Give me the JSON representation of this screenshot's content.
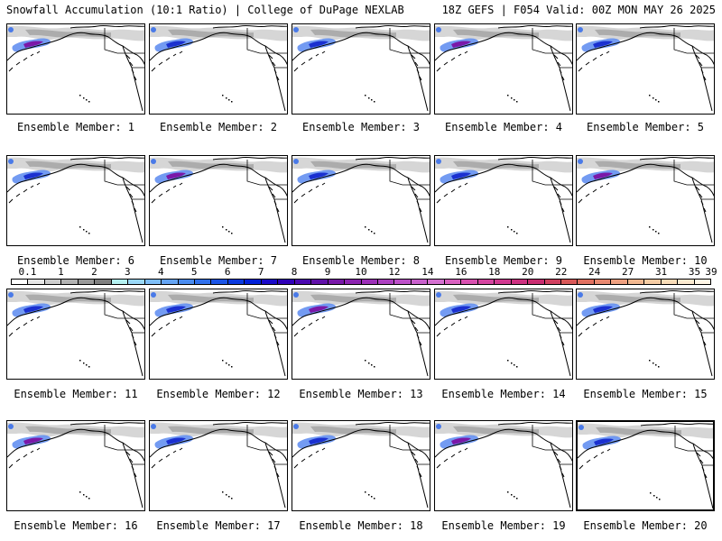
{
  "header": {
    "left_title": "Snowfall Accumulation (10:1 Ratio) | College of DuPage NEXLAB",
    "right_title": "18Z GEFS | F054 Valid: 00Z MON MAY 26 2025"
  },
  "members": [
    {
      "label": "Ensemble Member: 1"
    },
    {
      "label": "Ensemble Member: 2"
    },
    {
      "label": "Ensemble Member: 3"
    },
    {
      "label": "Ensemble Member: 4"
    },
    {
      "label": "Ensemble Member: 5"
    },
    {
      "label": "Ensemble Member: 6"
    },
    {
      "label": "Ensemble Member: 7"
    },
    {
      "label": "Ensemble Member: 8"
    },
    {
      "label": "Ensemble Member: 9"
    },
    {
      "label": "Ensemble Member: 10"
    },
    {
      "label": "Ensemble Member: 11"
    },
    {
      "label": "Ensemble Member: 12"
    },
    {
      "label": "Ensemble Member: 13"
    },
    {
      "label": "Ensemble Member: 14"
    },
    {
      "label": "Ensemble Member: 15"
    },
    {
      "label": "Ensemble Member: 16"
    },
    {
      "label": "Ensemble Member: 17"
    },
    {
      "label": "Ensemble Member: 18"
    },
    {
      "label": "Ensemble Member: 19"
    },
    {
      "label": "Ensemble Member: 20"
    }
  ],
  "colorbar": {
    "labels": [
      "0.1",
      "1",
      "2",
      "3",
      "4",
      "5",
      "6",
      "7",
      "8",
      "9",
      "10",
      "12",
      "14",
      "16",
      "18",
      "20",
      "22",
      "24",
      "27",
      "31",
      "35",
      "39"
    ],
    "colors": [
      "#ffffff",
      "#e6e6e6",
      "#cccccc",
      "#b3b3b3",
      "#999999",
      "#808080",
      "#b4f0f0",
      "#9ad8f8",
      "#7ebef8",
      "#64a4f4",
      "#4a8cf0",
      "#3070ec",
      "#1a54e6",
      "#0a3ae0",
      "#0020d8",
      "#1a0ac8",
      "#3000b8",
      "#4a08b0",
      "#6010a8",
      "#7818a8",
      "#8c24b0",
      "#9c30b8",
      "#ac40c0",
      "#bc50c8",
      "#c860cc",
      "#d470d0",
      "#d860c0",
      "#d850b0",
      "#d444a0",
      "#d03890",
      "#cc3080",
      "#c82c70",
      "#d04060",
      "#d85858",
      "#e07060",
      "#e88870",
      "#eea080",
      "#f2b890",
      "#f6cca4",
      "#f9dcb8",
      "#fcead0",
      "#fff6e6"
    ]
  }
}
